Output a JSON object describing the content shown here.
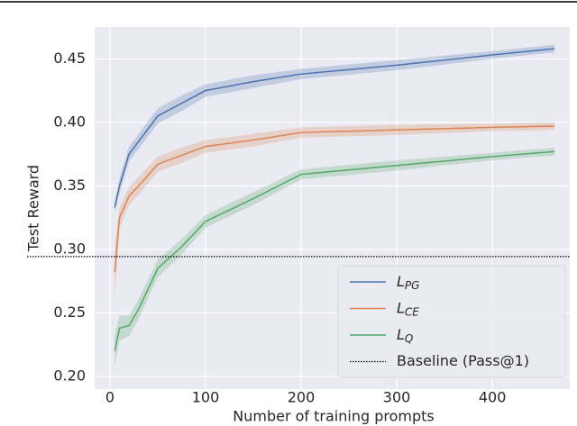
{
  "chart_data": {
    "type": "line",
    "xlabel": "Number of training prompts",
    "ylabel": "Test Reward",
    "xlim": [
      -16,
      481
    ],
    "ylim": [
      0.19,
      0.475
    ],
    "xticks": [
      0,
      100,
      200,
      300,
      400
    ],
    "yticks": [
      {
        "value": 0.2,
        "label": "0.20"
      },
      0.25,
      {
        "value": 0.3,
        "label": "0.30"
      },
      0.35,
      {
        "value": 0.4,
        "label": "0.40"
      },
      0.45
    ],
    "grid": true,
    "legend": "lower right",
    "x": [
      5,
      10,
      20,
      30,
      50,
      75,
      100,
      150,
      200,
      300,
      400,
      465
    ],
    "series": [
      {
        "name": "L",
        "name_sub": "PG",
        "color": "#4c72b0",
        "values": [
          0.333,
          0.35,
          0.375,
          0.385,
          0.405,
          0.415,
          0.425,
          0.432,
          0.438,
          0.445,
          0.453,
          0.458
        ],
        "error": [
          0.004,
          0.006,
          0.006,
          0.006,
          0.006,
          0.006,
          0.005,
          0.005,
          0.004,
          0.004,
          0.003,
          0.003
        ]
      },
      {
        "name": "L",
        "name_sub": "CE",
        "color": "#dd8452",
        "values": [
          0.282,
          0.325,
          0.342,
          0.35,
          0.367,
          0.374,
          0.381,
          0.386,
          0.392,
          0.394,
          0.396,
          0.397
        ],
        "error": [
          0.02,
          0.008,
          0.007,
          0.007,
          0.006,
          0.006,
          0.005,
          0.005,
          0.004,
          0.004,
          0.003,
          0.003
        ]
      },
      {
        "name": "L",
        "name_sub": "Q",
        "color": "#55a868",
        "values": [
          0.22,
          0.238,
          0.24,
          0.253,
          0.285,
          0.302,
          0.322,
          0.34,
          0.359,
          0.366,
          0.373,
          0.377
        ],
        "error": [
          0.012,
          0.01,
          0.008,
          0.008,
          0.007,
          0.006,
          0.005,
          0.005,
          0.004,
          0.004,
          0.003,
          0.003
        ]
      }
    ],
    "baseline": {
      "name": "Baseline (Pass@1)",
      "value": 0.2943,
      "color": "#000000"
    }
  }
}
